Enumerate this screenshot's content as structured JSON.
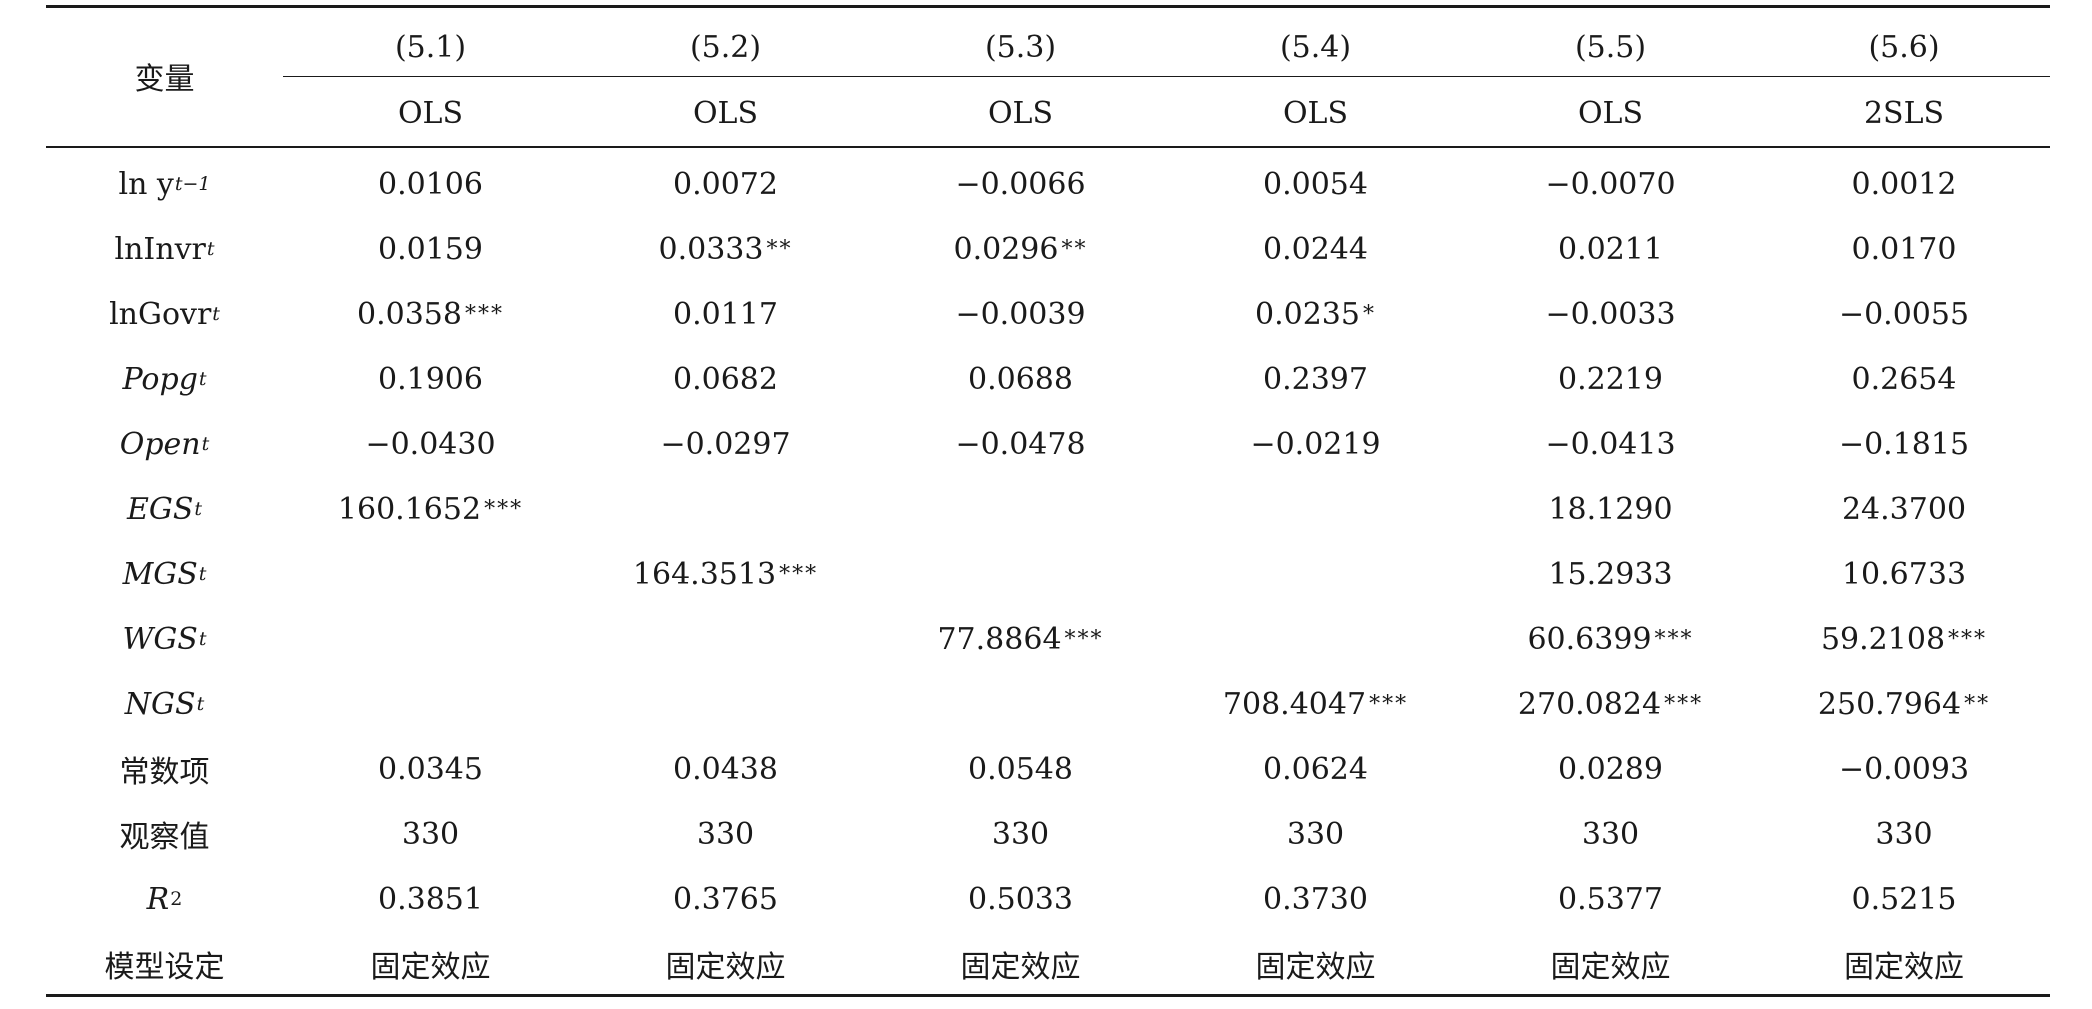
{
  "table": {
    "header": {
      "variable_label": "变量",
      "models": [
        {
          "number": "(5.1)",
          "method": "OLS"
        },
        {
          "number": "(5.2)",
          "method": "OLS"
        },
        {
          "number": "(5.3)",
          "method": "OLS"
        },
        {
          "number": "(5.4)",
          "method": "OLS"
        },
        {
          "number": "(5.5)",
          "method": "OLS"
        },
        {
          "number": "(5.6)",
          "method": "2SLS"
        }
      ]
    },
    "rows": [
      {
        "label_main": "ln y",
        "label_sub": "t−1",
        "italic": false,
        "cells": [
          {
            "value": "0.0106",
            "stars": ""
          },
          {
            "value": "0.0072",
            "stars": ""
          },
          {
            "value": "−0.0066",
            "stars": ""
          },
          {
            "value": "0.0054",
            "stars": ""
          },
          {
            "value": "−0.0070",
            "stars": ""
          },
          {
            "value": "0.0012",
            "stars": ""
          }
        ]
      },
      {
        "label_main": "lnInvr",
        "label_sub": "t",
        "italic": false,
        "cells": [
          {
            "value": "0.0159",
            "stars": ""
          },
          {
            "value": "0.0333",
            "stars": "**"
          },
          {
            "value": "0.0296",
            "stars": "**"
          },
          {
            "value": "0.0244",
            "stars": ""
          },
          {
            "value": "0.0211",
            "stars": ""
          },
          {
            "value": "0.0170",
            "stars": ""
          }
        ]
      },
      {
        "label_main": "lnGovr",
        "label_sub": "t",
        "italic": false,
        "cells": [
          {
            "value": "0.0358",
            "stars": "***"
          },
          {
            "value": "0.0117",
            "stars": ""
          },
          {
            "value": "−0.0039",
            "stars": ""
          },
          {
            "value": "0.0235",
            "stars": "*"
          },
          {
            "value": "−0.0033",
            "stars": ""
          },
          {
            "value": "−0.0055",
            "stars": ""
          }
        ]
      },
      {
        "label_main": "Popg",
        "label_sub": "t",
        "italic": true,
        "cells": [
          {
            "value": "0.1906",
            "stars": ""
          },
          {
            "value": "0.0682",
            "stars": ""
          },
          {
            "value": "0.0688",
            "stars": ""
          },
          {
            "value": "0.2397",
            "stars": ""
          },
          {
            "value": "0.2219",
            "stars": ""
          },
          {
            "value": "0.2654",
            "stars": ""
          }
        ]
      },
      {
        "label_main": "Open",
        "label_sub": "t",
        "italic": true,
        "cells": [
          {
            "value": "−0.0430",
            "stars": ""
          },
          {
            "value": "−0.0297",
            "stars": ""
          },
          {
            "value": "−0.0478",
            "stars": ""
          },
          {
            "value": "−0.0219",
            "stars": ""
          },
          {
            "value": "−0.0413",
            "stars": ""
          },
          {
            "value": "−0.1815",
            "stars": ""
          }
        ]
      },
      {
        "label_main": "EGS",
        "label_sub": "t",
        "italic": true,
        "cells": [
          {
            "value": "160.1652",
            "stars": "***"
          },
          {
            "value": "",
            "stars": ""
          },
          {
            "value": "",
            "stars": ""
          },
          {
            "value": "",
            "stars": ""
          },
          {
            "value": "18.1290",
            "stars": ""
          },
          {
            "value": "24.3700",
            "stars": ""
          }
        ]
      },
      {
        "label_main": "MGS",
        "label_sub": "t",
        "italic": true,
        "cells": [
          {
            "value": "",
            "stars": ""
          },
          {
            "value": "164.3513",
            "stars": "***"
          },
          {
            "value": "",
            "stars": ""
          },
          {
            "value": "",
            "stars": ""
          },
          {
            "value": "15.2933",
            "stars": ""
          },
          {
            "value": "10.6733",
            "stars": ""
          }
        ]
      },
      {
        "label_main": "WGS",
        "label_sub": "t",
        "italic": true,
        "cells": [
          {
            "value": "",
            "stars": ""
          },
          {
            "value": "",
            "stars": ""
          },
          {
            "value": "77.8864",
            "stars": "***"
          },
          {
            "value": "",
            "stars": ""
          },
          {
            "value": "60.6399",
            "stars": "***"
          },
          {
            "value": "59.2108",
            "stars": "***"
          }
        ]
      },
      {
        "label_main": "NGS",
        "label_sub": "t",
        "italic": true,
        "cells": [
          {
            "value": "",
            "stars": ""
          },
          {
            "value": "",
            "stars": ""
          },
          {
            "value": "",
            "stars": ""
          },
          {
            "value": "708.4047",
            "stars": "***"
          },
          {
            "value": "270.0824",
            "stars": "***"
          },
          {
            "value": "250.7964",
            "stars": "**"
          }
        ]
      },
      {
        "label_main": "常数项",
        "label_sub": "",
        "italic": false,
        "cjk": true,
        "cells": [
          {
            "value": "0.0345",
            "stars": ""
          },
          {
            "value": "0.0438",
            "stars": ""
          },
          {
            "value": "0.0548",
            "stars": ""
          },
          {
            "value": "0.0624",
            "stars": ""
          },
          {
            "value": "0.0289",
            "stars": ""
          },
          {
            "value": "−0.0093",
            "stars": ""
          }
        ]
      },
      {
        "label_main": "观察值",
        "label_sub": "",
        "italic": false,
        "cjk": true,
        "cells": [
          {
            "value": "330",
            "stars": ""
          },
          {
            "value": "330",
            "stars": ""
          },
          {
            "value": "330",
            "stars": ""
          },
          {
            "value": "330",
            "stars": ""
          },
          {
            "value": "330",
            "stars": ""
          },
          {
            "value": "330",
            "stars": ""
          }
        ]
      },
      {
        "label_main": "R",
        "label_sup": "2",
        "label_sub": "",
        "italic": true,
        "cells": [
          {
            "value": "0.3851",
            "stars": ""
          },
          {
            "value": "0.3765",
            "stars": ""
          },
          {
            "value": "0.5033",
            "stars": ""
          },
          {
            "value": "0.3730",
            "stars": ""
          },
          {
            "value": "0.5377",
            "stars": ""
          },
          {
            "value": "0.5215",
            "stars": ""
          }
        ]
      },
      {
        "label_main": "模型设定",
        "label_sub": "",
        "italic": false,
        "cjk": true,
        "cells": [
          {
            "value": "固定效应",
            "stars": "",
            "cjk": true
          },
          {
            "value": "固定效应",
            "stars": "",
            "cjk": true
          },
          {
            "value": "固定效应",
            "stars": "",
            "cjk": true
          },
          {
            "value": "固定效应",
            "stars": "",
            "cjk": true
          },
          {
            "value": "固定效应",
            "stars": "",
            "cjk": true
          },
          {
            "value": "固定效应",
            "stars": "",
            "cjk": true
          }
        ]
      }
    ]
  }
}
